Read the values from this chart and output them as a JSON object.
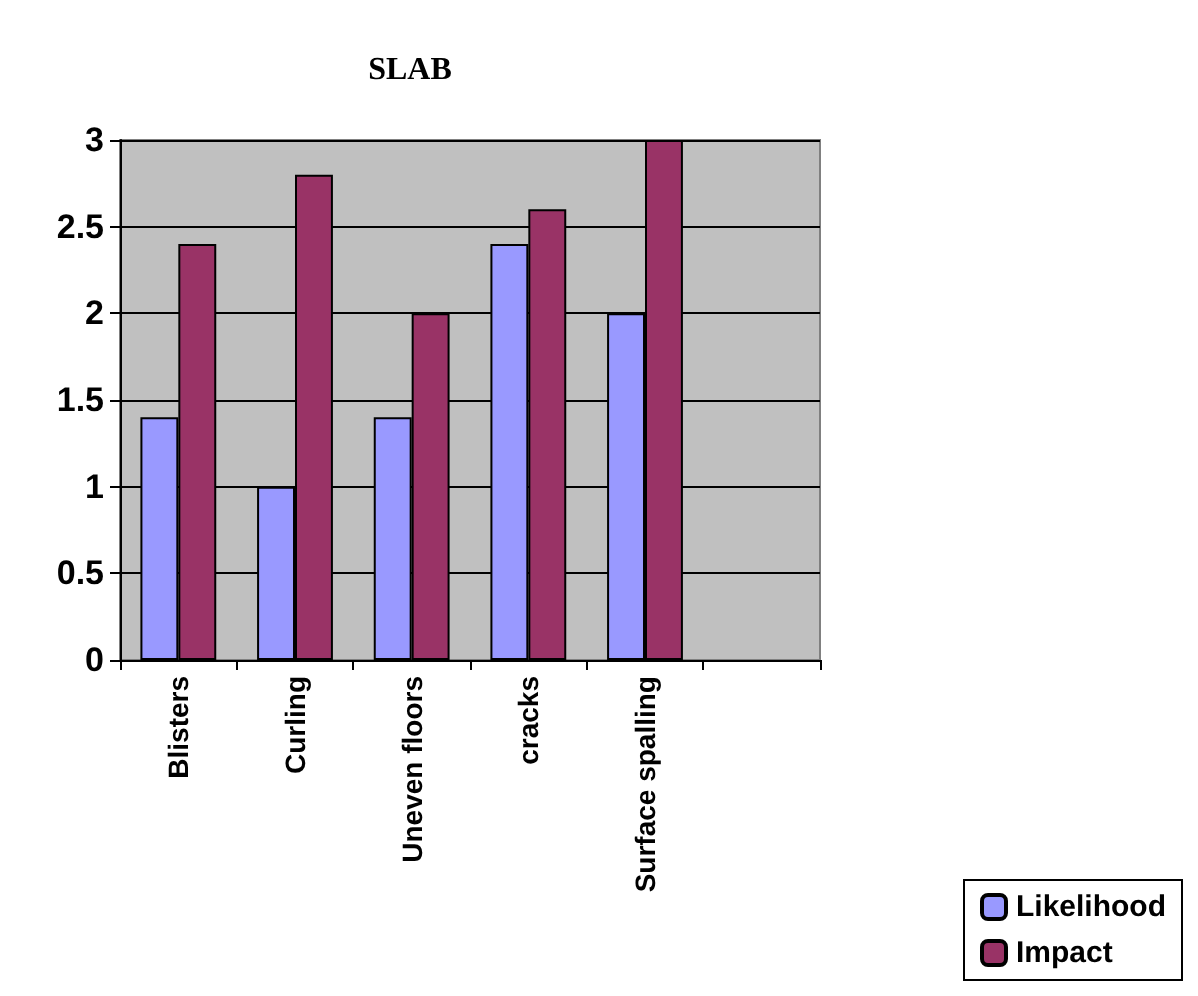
{
  "chart_data": {
    "type": "bar",
    "title": "SLAB",
    "categories": [
      "Blisters",
      "Curling",
      "Uneven floors",
      "cracks",
      "Surface spalling",
      null
    ],
    "series": [
      {
        "name": "Likelihood",
        "color": "#9999ff",
        "values": [
          1.4,
          1.0,
          1.4,
          2.4,
          2.0,
          null
        ]
      },
      {
        "name": "Impact",
        "color": "#993366",
        "values": [
          2.4,
          2.8,
          2.0,
          2.6,
          3.0,
          null
        ]
      }
    ],
    "ylim": [
      0,
      3
    ],
    "yticks": [
      0,
      0.5,
      1,
      1.5,
      2,
      2.5,
      3
    ],
    "grid": "y",
    "legend": "bottom right"
  }
}
